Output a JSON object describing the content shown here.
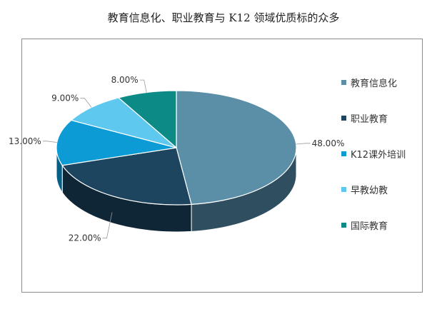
{
  "title": "教育信息化、职业教育与 K12 领域优质标的众多",
  "chart_data": {
    "type": "pie",
    "title": "教育信息化、职业教育与 K12 领域优质标的众多",
    "legend_position": "right",
    "slices": [
      {
        "label": "教育信息化",
        "value": 48.0,
        "value_label": "48.00%",
        "color": "#5b8fa8",
        "side_color": "#2f4f60"
      },
      {
        "label": "职业教育",
        "value": 22.0,
        "value_label": "22.00%",
        "color": "#1e4560",
        "side_color": "#0f2637"
      },
      {
        "label": "K12课外培训",
        "value": 13.0,
        "value_label": "13.00%",
        "color": "#0d9bd6",
        "side_color": "#075e85"
      },
      {
        "label": "早教幼教",
        "value": 9.0,
        "value_label": "9.00%",
        "color": "#5fc8ee",
        "side_color": "#2f86a8"
      },
      {
        "label": "国际教育",
        "value": 8.0,
        "value_label": "8.00%",
        "color": "#0c8a86",
        "side_color": "#055553"
      }
    ]
  }
}
